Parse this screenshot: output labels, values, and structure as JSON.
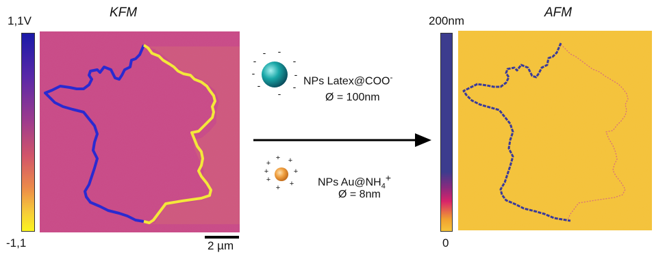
{
  "kfm": {
    "title": "KFM",
    "scale_max": "1,1V",
    "scale_min": "-1,1",
    "scale_bar": "2 µm"
  },
  "afm": {
    "title": "AFM",
    "scale_max": "200nm",
    "scale_min": "0"
  },
  "np_latex": {
    "name": "NPs Latex@COO",
    "charge": "-",
    "size": "Ø = 100nm",
    "sphere_color": "#1aa8a8"
  },
  "np_au": {
    "name_main": "NPs Au@NH",
    "subscript": "4",
    "charge": "+",
    "size": "Ø = 8nm",
    "sphere_color": "#f0a040"
  },
  "colors": {
    "kfm_background": "#c94a86",
    "kfm_left_line": "#2a2ad0",
    "kfm_right_line": "#f4e83a",
    "afm_background": "#f4c23a",
    "afm_line": "#3a3a9a"
  }
}
